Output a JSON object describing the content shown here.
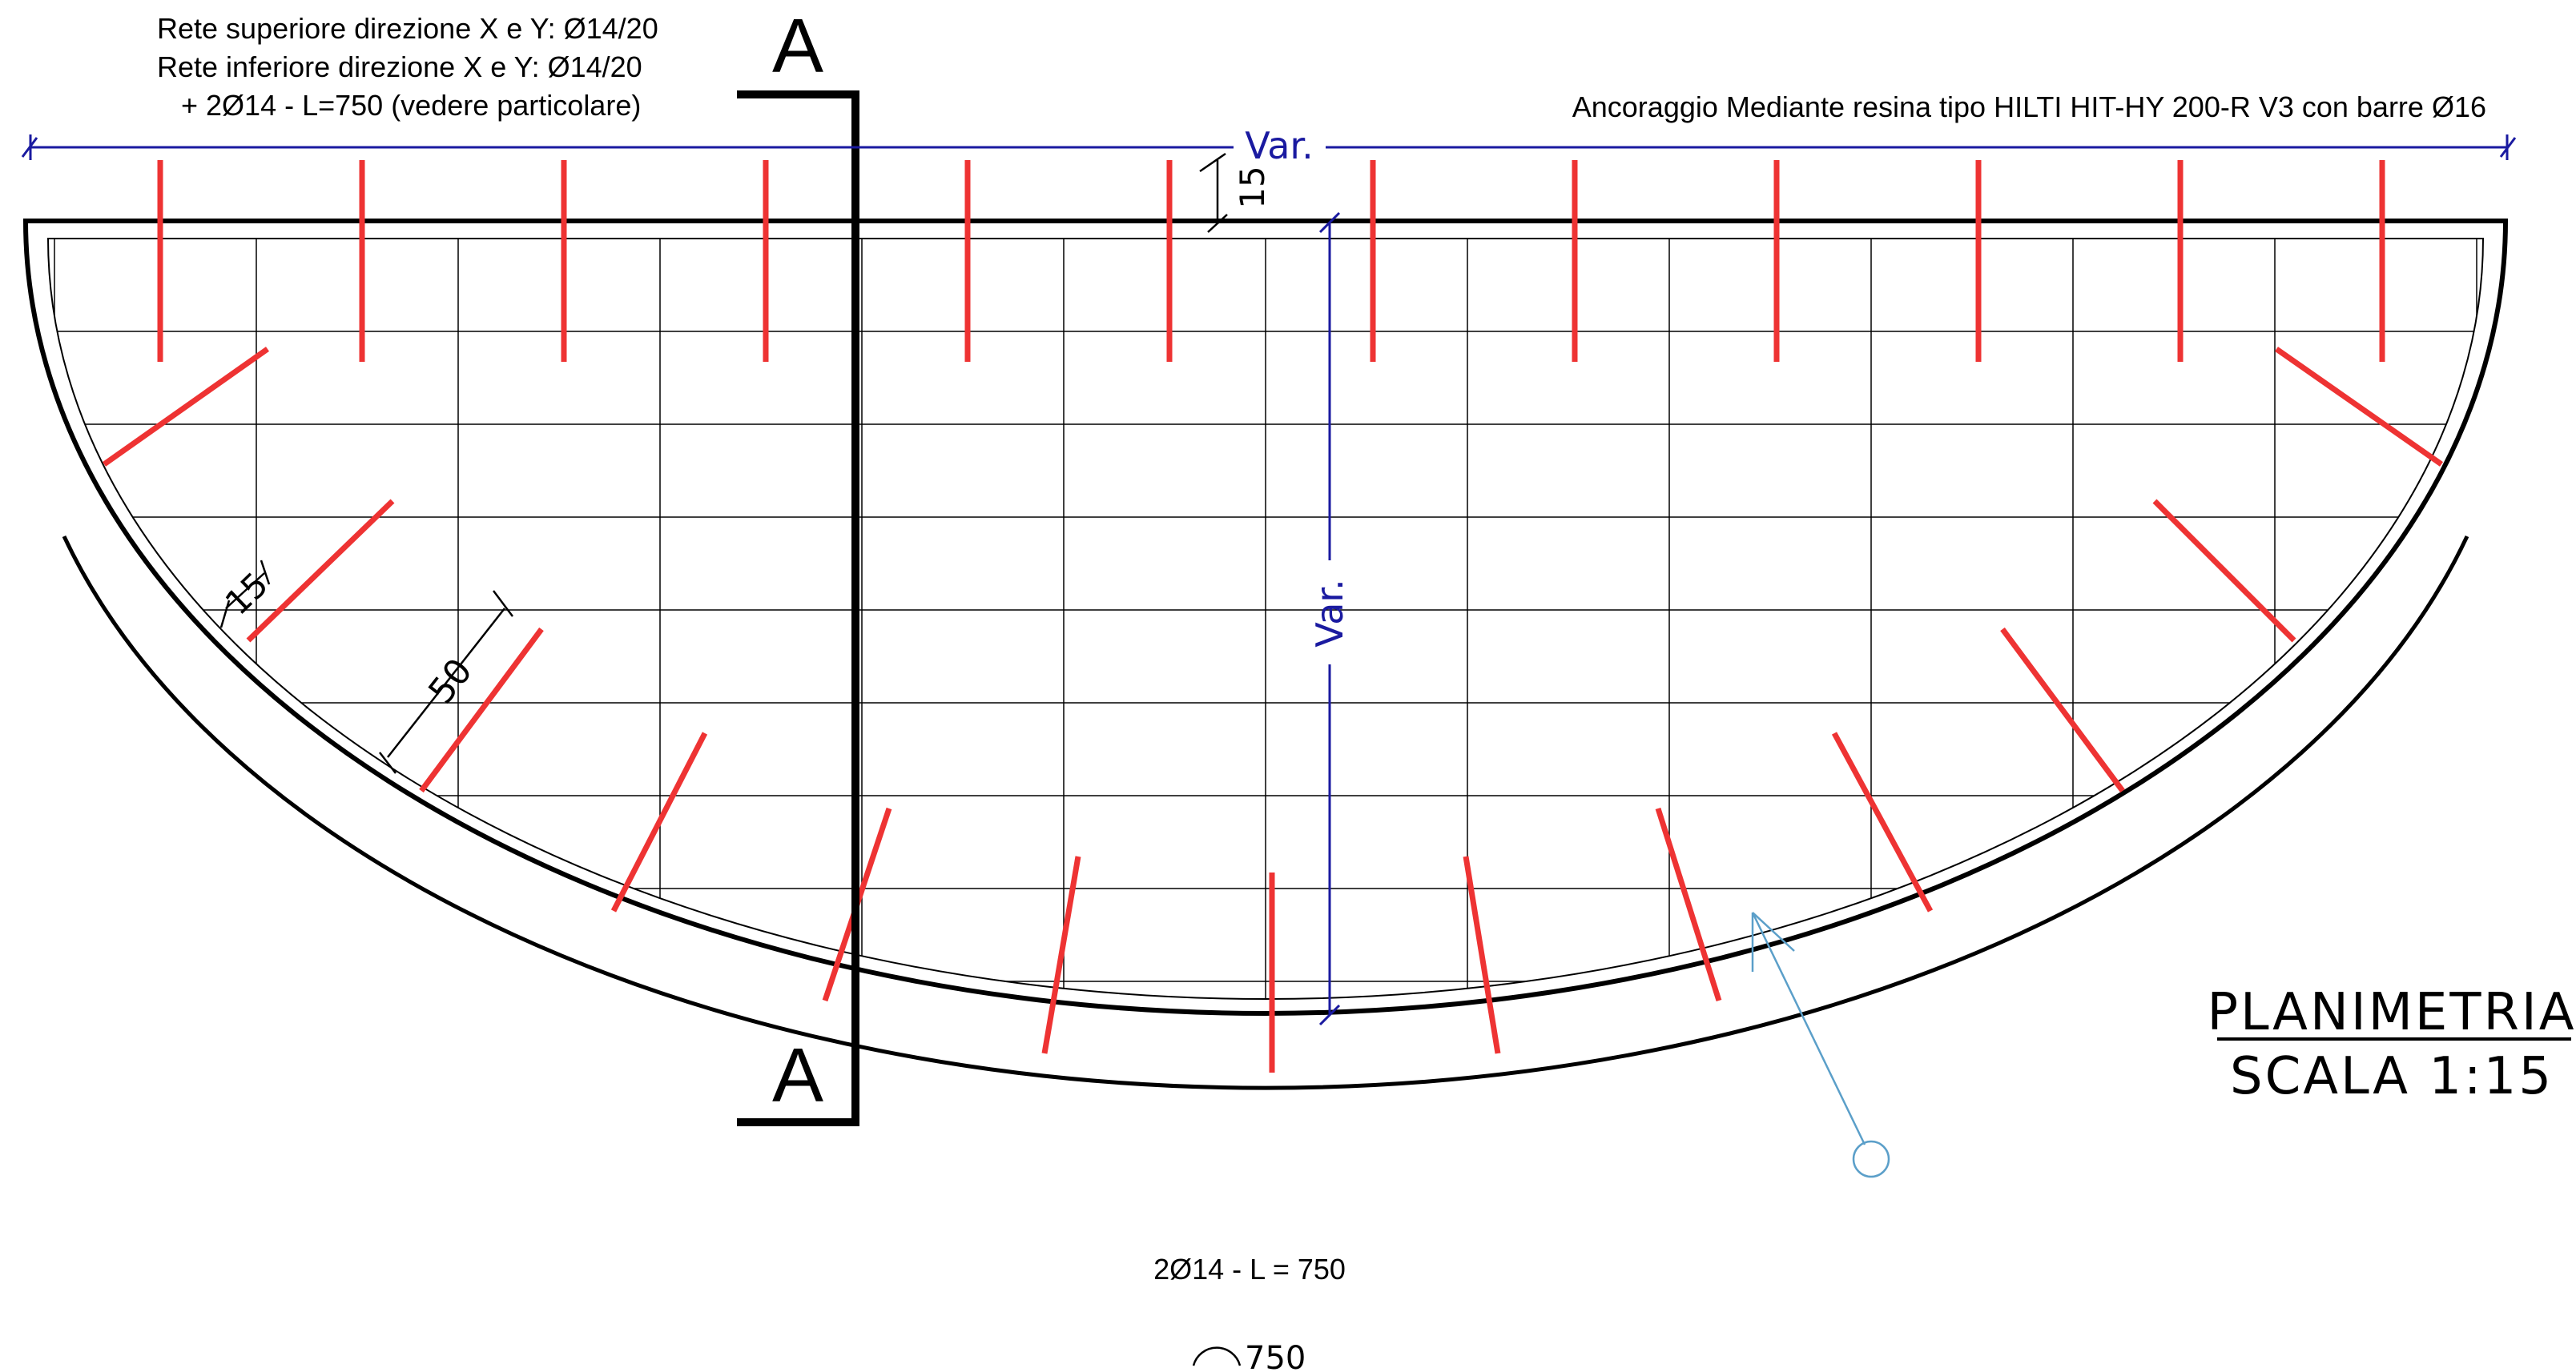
{
  "notes": {
    "line1": "Rete superiore direzione X e Y: Ø14/20",
    "line2": "Rete inferiore direzione X e Y: Ø14/20",
    "line3": "+   2Ø14 - L=750 (vedere particolare)",
    "anchor": "Ancoraggio Mediante resina tipo HILTI HIT-HY 200-R V3 con barre Ø16",
    "bar_label": "2Ø14 - L = 750",
    "arc_label": "750"
  },
  "section": {
    "top_letter": "A",
    "bottom_letter": "A"
  },
  "dimensions": {
    "width": "Var.",
    "height": "Var.",
    "cover_top": "15",
    "cover_side": "15",
    "spacing": "50"
  },
  "title": {
    "line1": "PLANIMETRIA",
    "line2": "SCALA 1:15"
  },
  "colors": {
    "outline": "#000000",
    "grid": "#000000",
    "anchor_bars": "#ee3333",
    "dimension": "#1a1aa0",
    "leader": "#5b9fc9"
  }
}
